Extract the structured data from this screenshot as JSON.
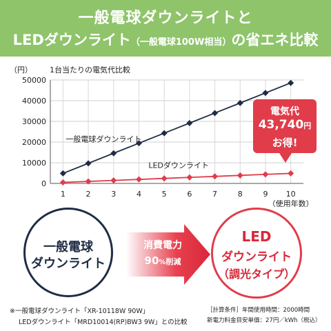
{
  "header": {
    "line1": "一般電球ダウンライトと",
    "line2_prefix": "LEDダウンライト",
    "line2_small": "（一般電球100W相当）",
    "line2_suffix": "の省エネ比較"
  },
  "chart_data": {
    "type": "line",
    "title": "1台当たりの電気代比較",
    "ylabel": "（円）",
    "xlabel": "（使用年数）",
    "ylim": [
      0,
      50000
    ],
    "yticks": [
      0,
      10000,
      20000,
      30000,
      40000,
      50000
    ],
    "ytick_labels": [
      "0",
      "10000",
      "20000",
      "30000",
      "40000",
      "50000"
    ],
    "x": [
      1,
      2,
      3,
      4,
      5,
      6,
      7,
      8,
      9,
      10
    ],
    "xtick_labels": [
      "1",
      "2",
      "3",
      "4",
      "5",
      "6",
      "7",
      "8",
      "9",
      "10"
    ],
    "grid": true,
    "series": [
      {
        "name": "一般電球ダウンライト",
        "color": "#1f2c44",
        "marker": "diamond",
        "values": [
          4860,
          9720,
          14580,
          19440,
          24300,
          29160,
          34020,
          38880,
          43740,
          48600
        ]
      },
      {
        "name": "LEDダウンライト",
        "color": "#e03c4a",
        "marker": "diamond",
        "values": [
          486,
          972,
          1458,
          1944,
          2430,
          2916,
          3402,
          3888,
          4374,
          4860
        ]
      }
    ]
  },
  "callout": {
    "line1": "電気代",
    "amount": "43,740",
    "unit": "円",
    "line3": "お得!"
  },
  "comparison": {
    "left_line1": "一般電球",
    "left_line2": "ダウンライト",
    "arrow_line1": "消費電力",
    "arrow_value": "90",
    "arrow_percent": "%",
    "arrow_cut": "削減",
    "right_line1": "LED",
    "right_line2": "ダウンライト",
    "right_line3": "（調光タイプ）"
  },
  "notes": {
    "note1": "※一般電球ダウンライト「XR-10118W 90W」",
    "note2": "LEDダウンライト「MRD10014(RP)BW3 9W」との比較",
    "cond1": "［計算条件］年間使用時間：2000時間",
    "cond2": "新電力料金目安単価：27円／kWh（税込）"
  },
  "colors": {
    "header_bg": "#8fc46b",
    "accent_red": "#e03c4a",
    "navy": "#1f2c44"
  }
}
